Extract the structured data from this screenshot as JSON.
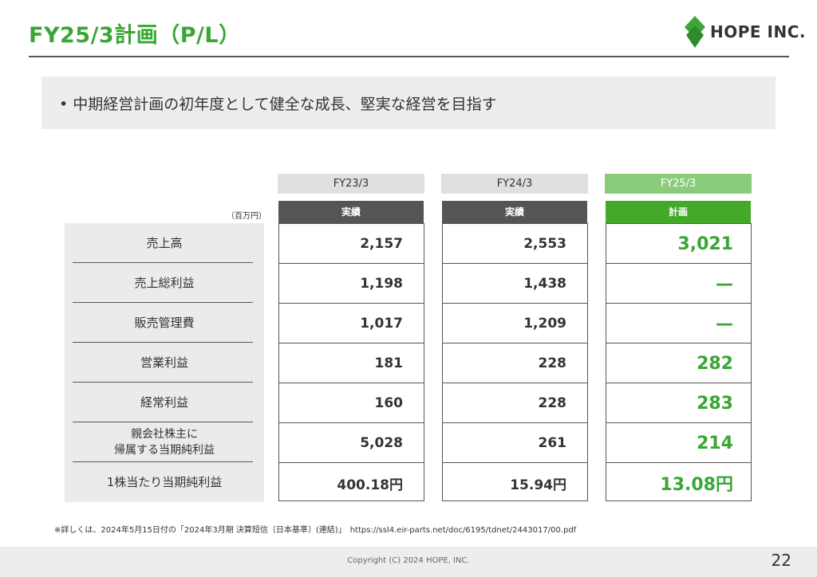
{
  "header": {
    "title": "FY25/3計画（P/L）",
    "logo_text": "HOPE INC.",
    "brand_color": "#3aa635"
  },
  "banner": {
    "text": "• 中期経営計画の初年度として健全な成長、堅実な経営を目指す"
  },
  "table": {
    "unit": "（百万円）",
    "columns": [
      {
        "year": "FY23/3",
        "type": "実績"
      },
      {
        "year": "FY24/3",
        "type": "実績"
      },
      {
        "year": "FY25/3",
        "type": "計画"
      }
    ],
    "rows": [
      {
        "label": "売上高",
        "values": [
          "2,157",
          "2,553",
          "3,021"
        ]
      },
      {
        "label": "売上総利益",
        "values": [
          "1,198",
          "1,438",
          "—"
        ]
      },
      {
        "label": "販売管理費",
        "values": [
          "1,017",
          "1,209",
          "—"
        ]
      },
      {
        "label": "営業利益",
        "values": [
          "181",
          "228",
          "282"
        ]
      },
      {
        "label": "経常利益",
        "values": [
          "160",
          "228",
          "283"
        ]
      },
      {
        "label": "親会社株主に\n帰属する当期純利益",
        "values": [
          "5,028",
          "261",
          "214"
        ]
      },
      {
        "label": "1株当たり当期純利益",
        "values": [
          "400.18円",
          "15.94円",
          "13.08円"
        ]
      }
    ]
  },
  "footnote": "※詳しくは、2024年5月15日付の「2024年3月期 決算短信〔日本基準〕(連結)」　https://ssl4.eir-parts.net/doc/6195/tdnet/2443017/00.pdf",
  "footer": {
    "copyright": "Copyright (C) 2024 HOPE, INC.",
    "page_number": "22"
  }
}
